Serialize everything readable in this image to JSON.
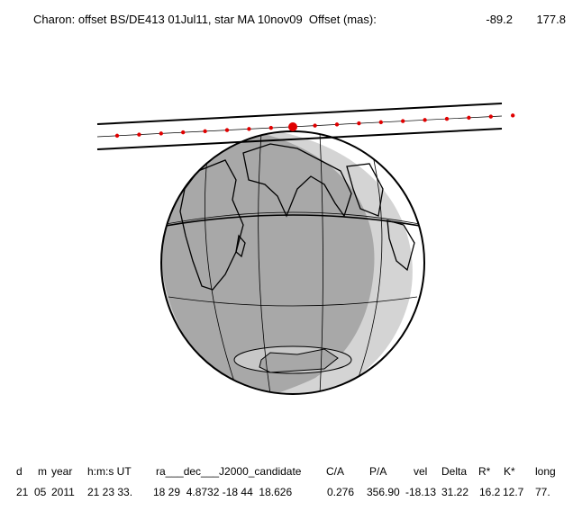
{
  "header": {
    "title": "Charon: offset BS/DE413 01Jul11, star MA 10nov09  Offset (mas):",
    "offset_1": "-89.2",
    "offset_2": "177.8"
  },
  "table": {
    "columns": [
      "d",
      "m",
      "year",
      "h:m:s UT",
      "ra___dec___J2000_candidate",
      "C/A",
      "P/A",
      "vel",
      "Delta",
      "R*",
      "K*",
      "long"
    ],
    "rows": [
      [
        "21",
        "05",
        "2011",
        "21 23 33.",
        "18 29  4.8732 -18 44  18.626",
        "0.276",
        "356.90",
        "-18.13",
        "31.22",
        "16.2",
        "12.7",
        "77."
      ]
    ]
  }
}
